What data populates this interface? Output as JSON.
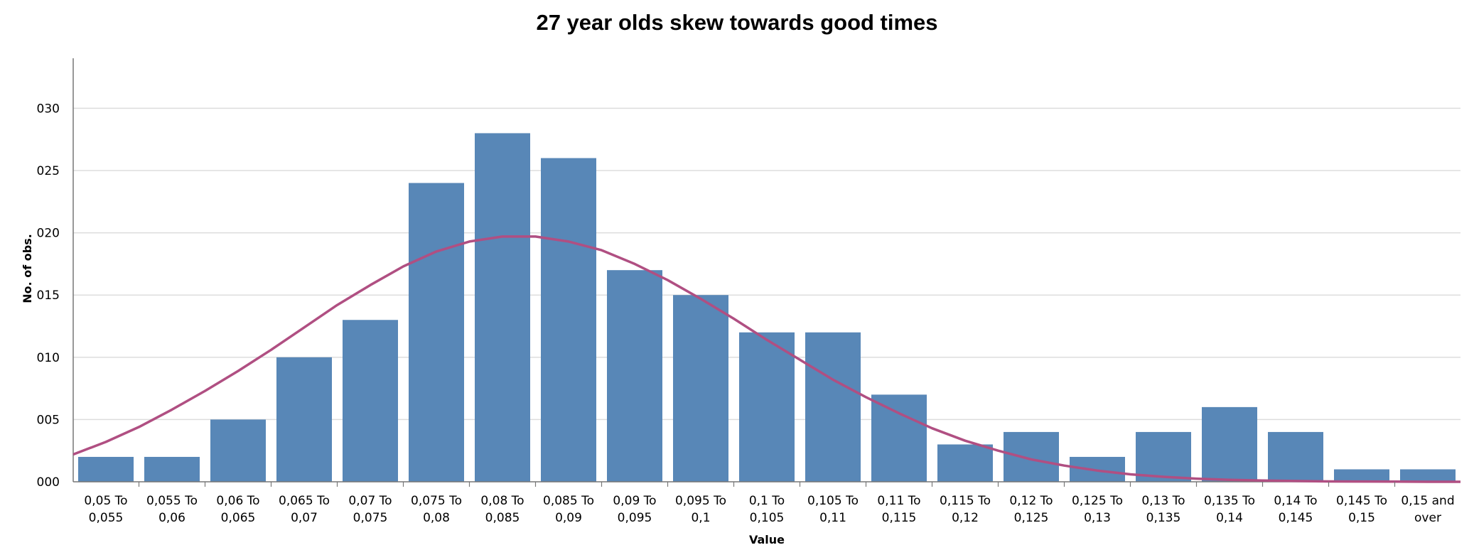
{
  "chart_data": {
    "type": "bar",
    "title": "27 year olds skew towards good times",
    "xlabel": "Value",
    "ylabel": "No. of obs.",
    "ylim": [
      0,
      33
    ],
    "yticks": [
      "000",
      "005",
      "010",
      "015",
      "020",
      "025",
      "030"
    ],
    "ytick_values": [
      0,
      5,
      10,
      15,
      20,
      25,
      30
    ],
    "grid": true,
    "categories": [
      [
        "0,05 To",
        "0,055"
      ],
      [
        "0,055 To",
        "0,06"
      ],
      [
        "0,06 To",
        "0,065"
      ],
      [
        "0,065 To",
        "0,07"
      ],
      [
        "0,07 To",
        "0,075"
      ],
      [
        "0,075 To",
        "0,08"
      ],
      [
        "0,08 To",
        "0,085"
      ],
      [
        "0,085 To",
        "0,09"
      ],
      [
        "0,09 To",
        "0,095"
      ],
      [
        "0,095 To",
        "0,1"
      ],
      [
        "0,1 To",
        "0,105"
      ],
      [
        "0,105 To",
        "0,11"
      ],
      [
        "0,11 To",
        "0,115"
      ],
      [
        "0,115 To",
        "0,12"
      ],
      [
        "0,12 To",
        "0,125"
      ],
      [
        "0,125 To",
        "0,13"
      ],
      [
        "0,13 To",
        "0,135"
      ],
      [
        "0,135 To",
        "0,14"
      ],
      [
        "0,14 To",
        "0,145"
      ],
      [
        "0,145 To",
        "0,15"
      ],
      [
        "0,15 and",
        "over"
      ]
    ],
    "values": [
      2,
      2,
      5,
      10,
      13,
      24,
      28,
      26,
      17,
      15,
      12,
      12,
      7,
      3,
      4,
      2,
      4,
      6,
      4,
      1,
      1
    ],
    "normal_curve": {
      "x": [
        -0.5,
        0,
        0.5,
        1,
        1.5,
        2,
        2.5,
        3,
        3.5,
        4,
        4.5,
        5,
        5.5,
        6,
        6.5,
        7,
        7.5,
        8,
        8.5,
        9,
        9.5,
        10,
        10.5,
        11,
        11.5,
        12,
        12.5,
        13,
        13.5,
        14,
        14.5,
        15,
        15.5,
        16,
        16.5,
        17,
        17.5,
        18,
        18.5,
        19,
        19.5,
        20,
        20.5
      ],
      "y": [
        2.2,
        3.2,
        4.4,
        5.8,
        7.3,
        8.9,
        10.6,
        12.4,
        14.2,
        15.8,
        17.3,
        18.5,
        19.3,
        19.7,
        19.7,
        19.3,
        18.6,
        17.5,
        16.2,
        14.7,
        13.1,
        11.4,
        9.8,
        8.2,
        6.8,
        5.5,
        4.3,
        3.3,
        2.5,
        1.8,
        1.3,
        0.9,
        0.6,
        0.4,
        0.25,
        0.16,
        0.1,
        0.06,
        0.03,
        0.02,
        0.01,
        0.0,
        0.0
      ]
    },
    "colors": {
      "bar": "#5887b7",
      "curve": "#b04f82",
      "grid": "#dddddd",
      "axis": "#777777"
    }
  }
}
